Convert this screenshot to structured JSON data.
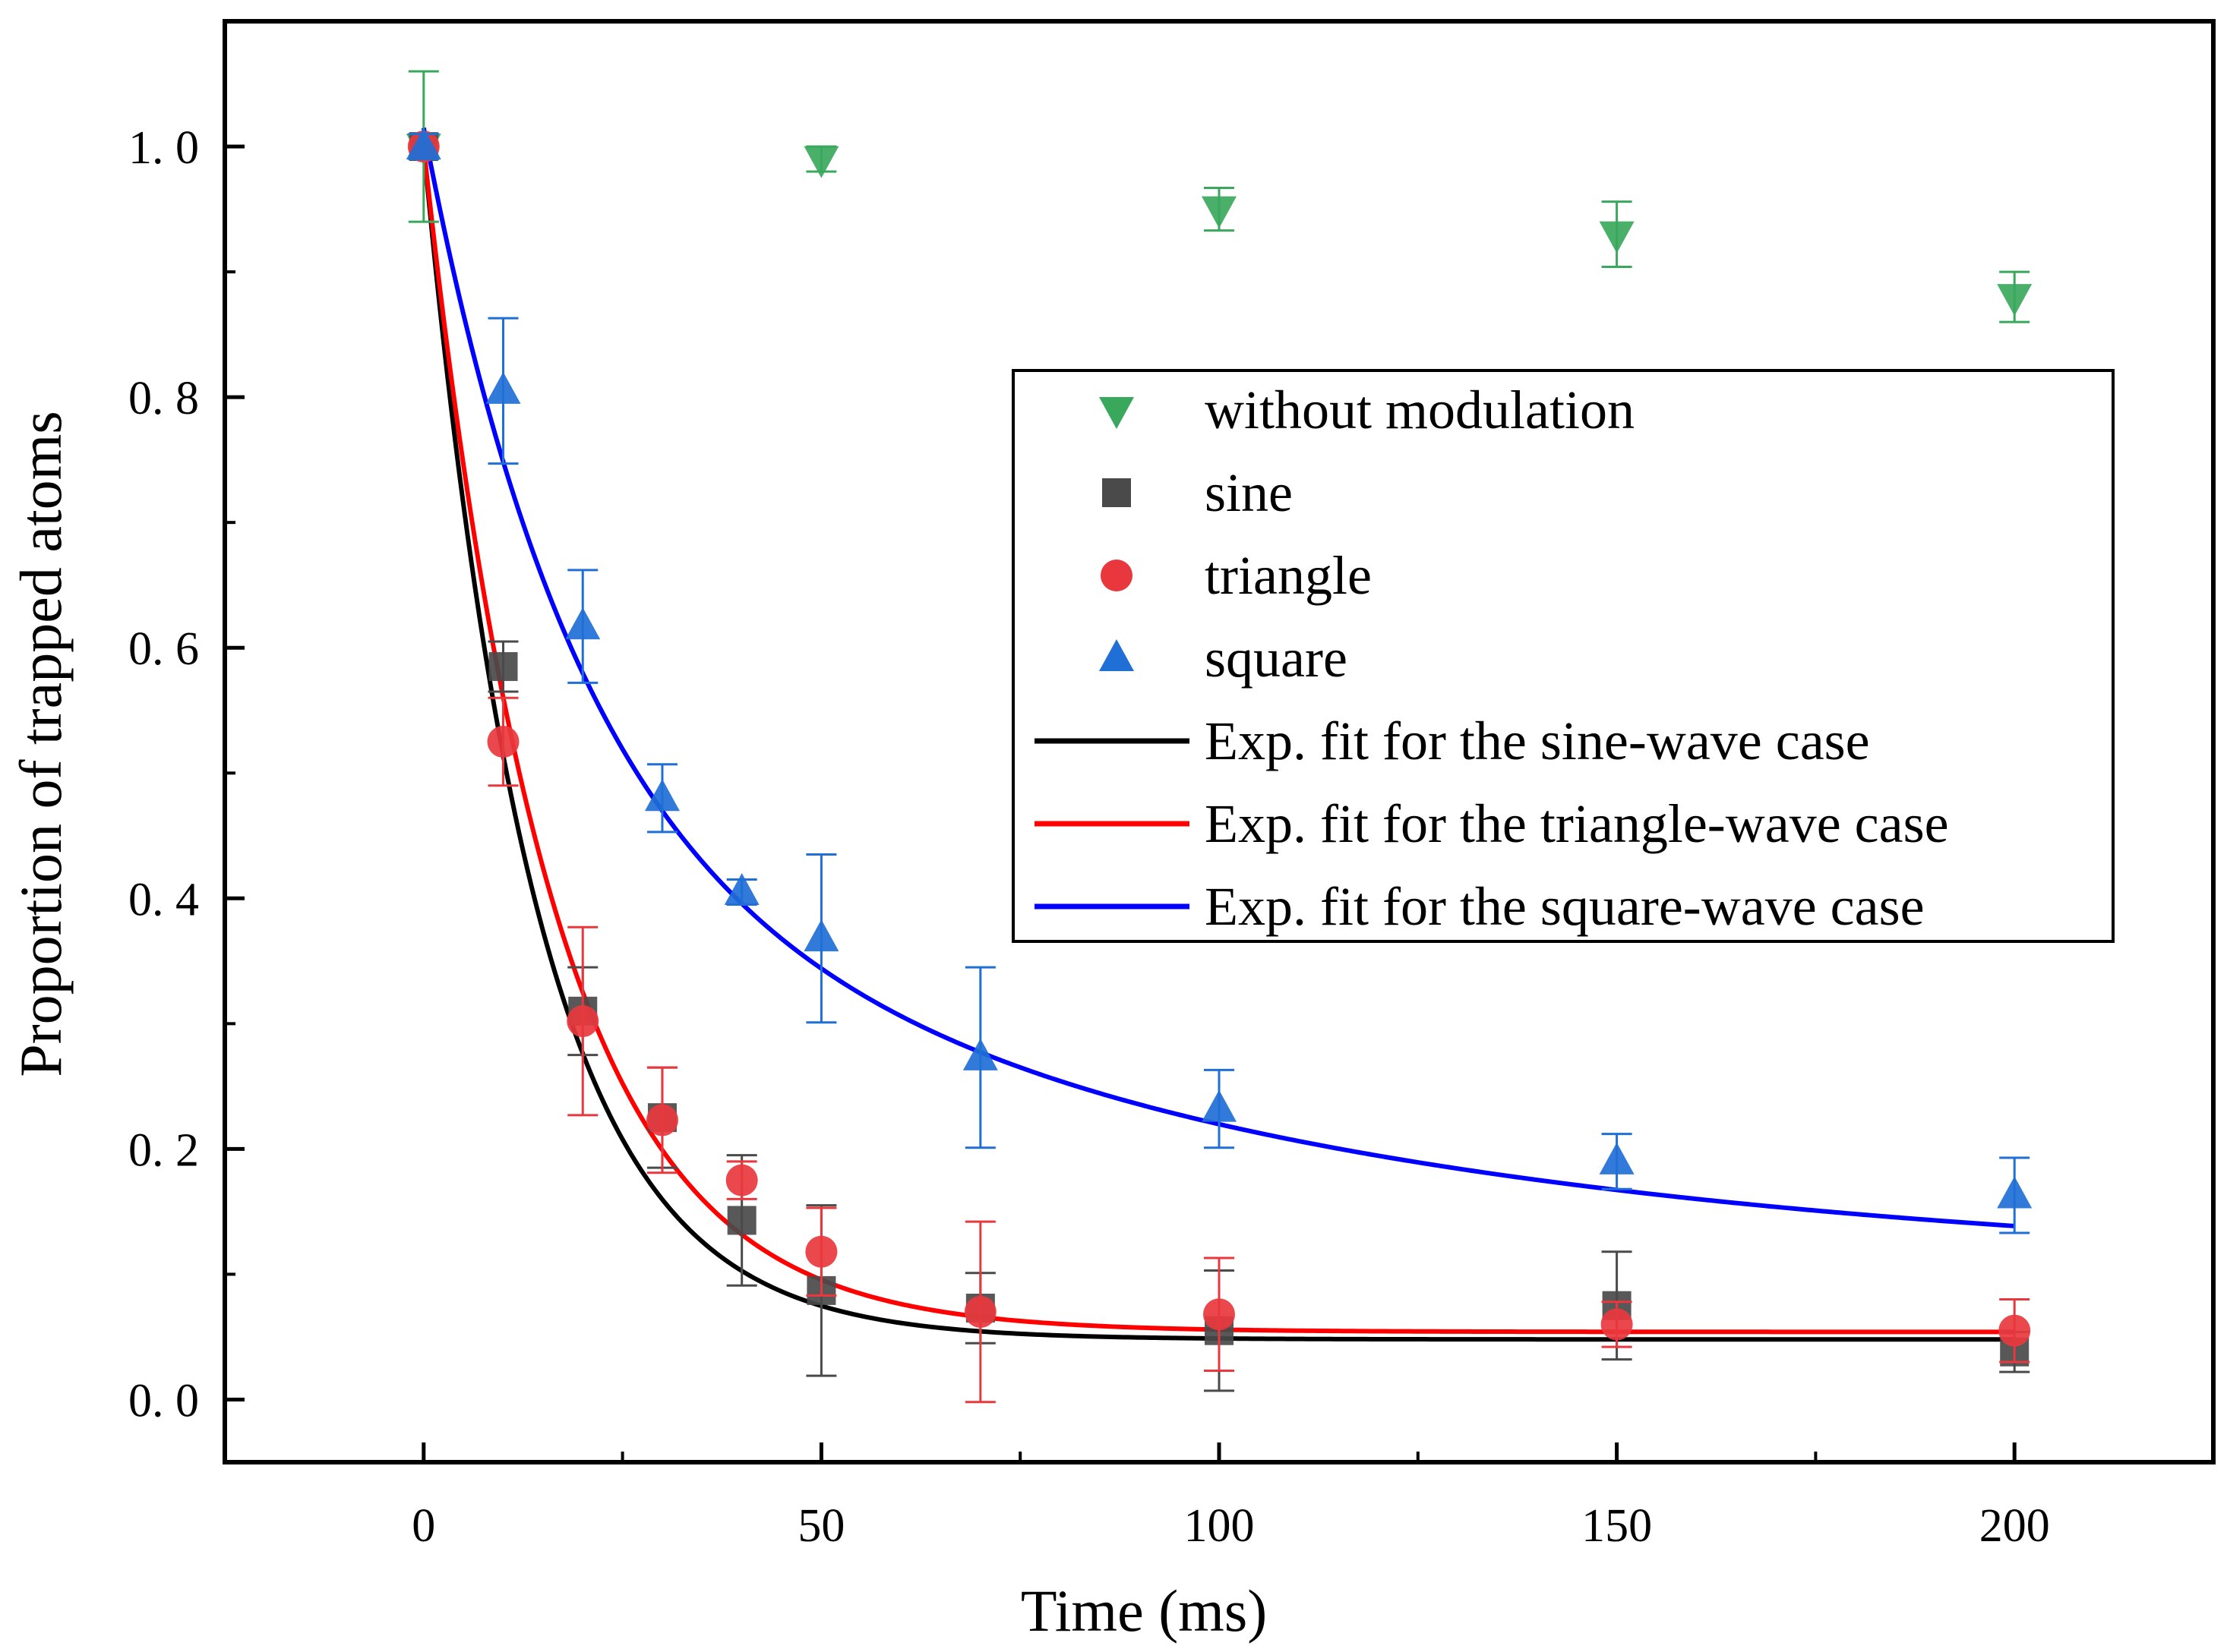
{
  "chart_data": {
    "type": "scatter",
    "title": "",
    "xlabel": "Time (ms)",
    "ylabel": "Proportion of trapped atoms",
    "xlim": [
      -25,
      225
    ],
    "ylim": [
      -0.05,
      1.1
    ],
    "xticks": [
      0,
      50,
      100,
      150,
      200
    ],
    "yticks": [
      0.0,
      0.2,
      0.4,
      0.6,
      0.8,
      1.0
    ],
    "xtick_labels": [
      "0",
      "50",
      "100",
      "150",
      "200"
    ],
    "ytick_labels": [
      "0. 0",
      "0. 2",
      "0. 4",
      "0. 6",
      "0. 8",
      "1. 0"
    ],
    "grid": false,
    "legend_position": "right-center",
    "series": [
      {
        "name": "without modulation",
        "marker": "triangle-down",
        "color": "#3aa85c",
        "x": [
          0,
          50,
          100,
          150,
          200
        ],
        "y": [
          1.0,
          0.99,
          0.95,
          0.93,
          0.88
        ],
        "err": [
          0.06,
          0.01,
          0.017,
          0.026,
          0.02
        ]
      },
      {
        "name": "sine",
        "marker": "square",
        "color": "#4a4a4a",
        "x": [
          0,
          10,
          20,
          30,
          40,
          50,
          70,
          100,
          150,
          200
        ],
        "y": [
          1.0,
          0.585,
          0.31,
          0.225,
          0.143,
          0.087,
          0.073,
          0.055,
          0.075,
          0.038
        ],
        "err": [
          0.01,
          0.02,
          0.035,
          0.04,
          0.052,
          0.068,
          0.028,
          0.048,
          0.043,
          0.016
        ]
      },
      {
        "name": "triangle",
        "marker": "circle",
        "color": "#e8383d",
        "x": [
          0,
          10,
          20,
          30,
          40,
          50,
          70,
          100,
          150,
          200
        ],
        "y": [
          1.0,
          0.525,
          0.302,
          0.223,
          0.175,
          0.118,
          0.07,
          0.068,
          0.06,
          0.055
        ],
        "err": [
          0.01,
          0.035,
          0.075,
          0.042,
          0.015,
          0.035,
          0.072,
          0.045,
          0.018,
          0.025
        ]
      },
      {
        "name": "square",
        "marker": "triangle-up",
        "color": "#1f6fd6",
        "x": [
          0,
          10,
          20,
          30,
          40,
          50,
          70,
          100,
          150,
          200
        ],
        "y": [
          1.0,
          0.805,
          0.617,
          0.48,
          0.405,
          0.368,
          0.273,
          0.232,
          0.19,
          0.163
        ],
        "err": [
          0.01,
          0.058,
          0.045,
          0.027,
          0.01,
          0.067,
          0.072,
          0.031,
          0.022,
          0.03
        ]
      }
    ],
    "fits": [
      {
        "name": "Exp. fit for the sine-wave case",
        "color": "#000000",
        "y0": 0.048,
        "terms": [
          {
            "A": 0.952,
            "tau": 14.0
          }
        ]
      },
      {
        "name": "Exp. fit for the triangle-wave case",
        "color": "#ff0000",
        "y0": 0.054,
        "terms": [
          {
            "A": 0.946,
            "tau": 16.0
          }
        ]
      },
      {
        "name": "Exp. fit for the square-wave case",
        "color": "#0000ff",
        "y0": 0.1,
        "terms": [
          {
            "A": 0.56,
            "tau": 19.0
          },
          {
            "A": 0.355,
            "tau": 90.0
          }
        ]
      }
    ],
    "legend": [
      {
        "label": "without modulation",
        "kind": "marker",
        "marker": "triangle-down",
        "color": "#3aa85c"
      },
      {
        "label": "sine",
        "kind": "marker",
        "marker": "square",
        "color": "#4a4a4a"
      },
      {
        "label": "triangle",
        "kind": "marker",
        "marker": "circle",
        "color": "#e8383d"
      },
      {
        "label": "square",
        "kind": "marker",
        "marker": "triangle-up",
        "color": "#1f6fd6"
      },
      {
        "label": "Exp. fit for the sine-wave case",
        "kind": "line",
        "color": "#000000"
      },
      {
        "label": "Exp. fit for the triangle-wave case",
        "kind": "line",
        "color": "#ff0000"
      },
      {
        "label": "Exp. fit for the square-wave case",
        "kind": "line",
        "color": "#0000ff"
      }
    ]
  }
}
